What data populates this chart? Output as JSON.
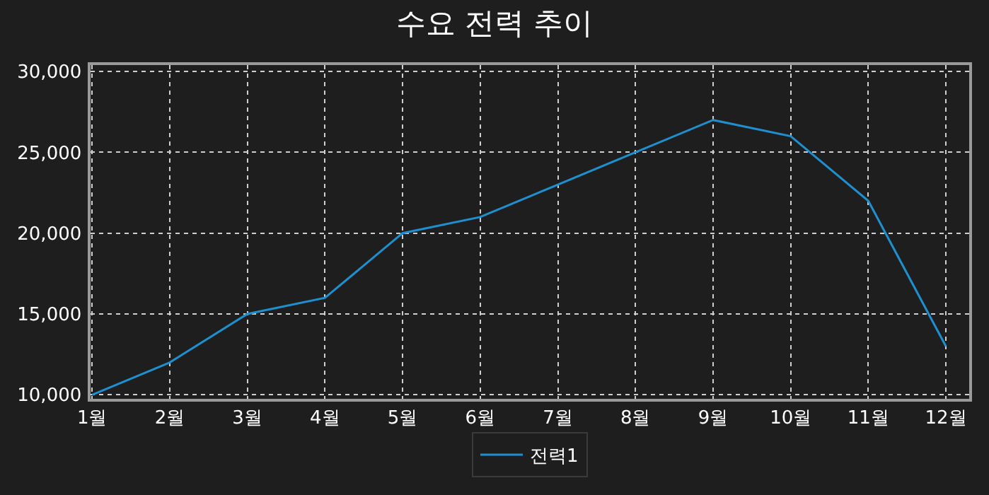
{
  "chart_data": {
    "type": "line",
    "title": "수요 전력 추이",
    "categories": [
      "1월",
      "2월",
      "3월",
      "4월",
      "5월",
      "6월",
      "7월",
      "8월",
      "9월",
      "10월",
      "11월",
      "12월"
    ],
    "series": [
      {
        "name": "전력1",
        "color": "#1e90d0",
        "values": [
          10000,
          12000,
          15000,
          16000,
          20000,
          21000,
          23000,
          25000,
          27000,
          26000,
          22000,
          13000
        ]
      }
    ],
    "ylim": [
      9750,
      30400
    ],
    "yticks": [
      {
        "value": 10000,
        "label": "10,000"
      },
      {
        "value": 15000,
        "label": "15,000"
      },
      {
        "value": 20000,
        "label": "20,000"
      },
      {
        "value": 25000,
        "label": "25,000"
      },
      {
        "value": 30000,
        "label": "30,000"
      }
    ],
    "grid": true,
    "legend": "bottom",
    "marker": "none",
    "line_style": "solid"
  }
}
